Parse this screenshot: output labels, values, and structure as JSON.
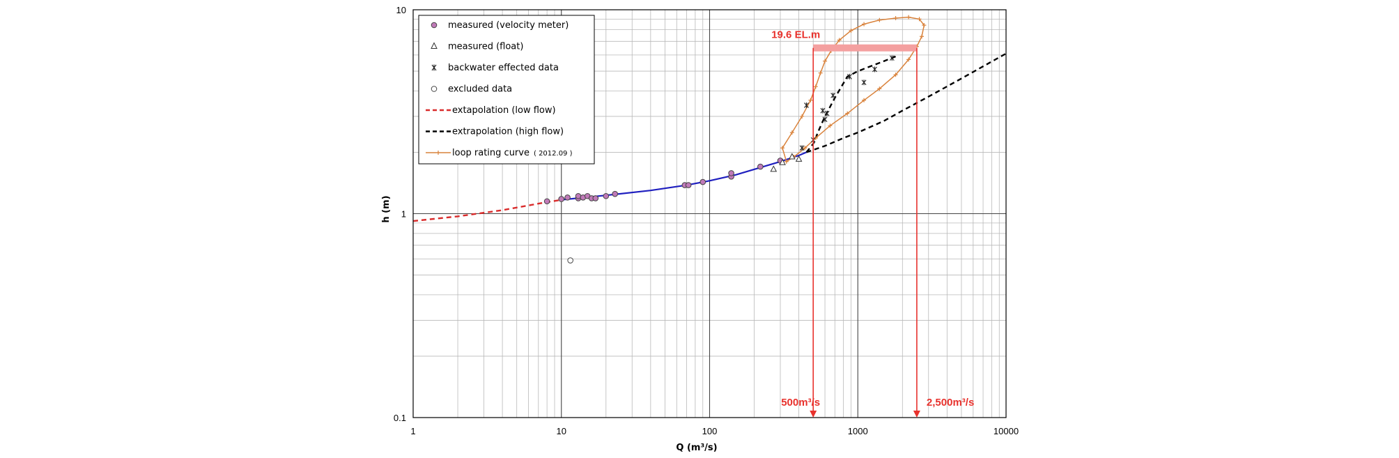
{
  "chart_data": {
    "type": "scatter",
    "title": "",
    "xlabel": "Q (m³/s)",
    "ylabel": "h (m)",
    "x_scale": "log",
    "y_scale": "log",
    "xlim": [
      1,
      10000
    ],
    "ylim": [
      0.1,
      10
    ],
    "x_ticks": [
      "1",
      "10",
      "100",
      "1000",
      "10000"
    ],
    "y_ticks": [
      "0.1",
      "1",
      "10"
    ],
    "grid": true,
    "legend_position": "top-left",
    "colors": {
      "velocity_fill": "#c07ab8",
      "rating_curve": "#1f1fbf",
      "low_flow": "#d92b2b",
      "high_flow": "#000000",
      "loop": "#d9823b",
      "annotation": "#e8322d",
      "annotation_band": "#f4a0a0"
    },
    "legend": [
      {
        "key": "velocity",
        "label": "measured (velocity meter)"
      },
      {
        "key": "float",
        "label": "measured (float)"
      },
      {
        "key": "backwater",
        "label": "backwater effected data"
      },
      {
        "key": "excluded",
        "label": "excluded data"
      },
      {
        "key": "low_flow",
        "label": "extapolation (low flow)"
      },
      {
        "key": "high_flow",
        "label": "extrapolation (high flow)"
      },
      {
        "key": "loop",
        "label": "loop rating curve",
        "suffix": "( 2012.09 )"
      }
    ],
    "series": {
      "velocity": [
        [
          8,
          1.15
        ],
        [
          10,
          1.18
        ],
        [
          11,
          1.2
        ],
        [
          13,
          1.19
        ],
        [
          13,
          1.22
        ],
        [
          14,
          1.2
        ],
        [
          15,
          1.22
        ],
        [
          16,
          1.19
        ],
        [
          17,
          1.19
        ],
        [
          20,
          1.22
        ],
        [
          23,
          1.25
        ],
        [
          68,
          1.38
        ],
        [
          72,
          1.38
        ],
        [
          90,
          1.43
        ],
        [
          140,
          1.52
        ],
        [
          140,
          1.58
        ],
        [
          220,
          1.7
        ],
        [
          300,
          1.82
        ]
      ],
      "float": [
        [
          270,
          1.65
        ],
        [
          310,
          1.78
        ],
        [
          360,
          1.9
        ],
        [
          400,
          1.85
        ]
      ],
      "backwater": [
        [
          420,
          2.1
        ],
        [
          450,
          3.4
        ],
        [
          500,
          2.3
        ],
        [
          580,
          3.2
        ],
        [
          600,
          2.9
        ],
        [
          620,
          3.1
        ],
        [
          680,
          3.8
        ],
        [
          880,
          4.7
        ],
        [
          1100,
          4.4
        ],
        [
          1300,
          5.1
        ],
        [
          1700,
          5.8
        ]
      ],
      "excluded": [
        [
          11.5,
          0.59
        ]
      ],
      "rating_curve": [
        [
          10,
          1.17
        ],
        [
          20,
          1.23
        ],
        [
          40,
          1.3
        ],
        [
          70,
          1.38
        ],
        [
          100,
          1.45
        ],
        [
          150,
          1.55
        ],
        [
          200,
          1.65
        ],
        [
          300,
          1.8
        ],
        [
          400,
          1.93
        ],
        [
          450,
          2.0
        ]
      ],
      "low_flow": [
        [
          1,
          0.92
        ],
        [
          2,
          0.97
        ],
        [
          4,
          1.04
        ],
        [
          7,
          1.12
        ],
        [
          10,
          1.17
        ]
      ],
      "high_flow_branch_1": [
        [
          450,
          2.0
        ],
        [
          500,
          2.2
        ],
        [
          550,
          2.6
        ],
        [
          600,
          3.0
        ],
        [
          700,
          3.7
        ],
        [
          850,
          4.7
        ],
        [
          1000,
          5.0
        ],
        [
          1500,
          5.6
        ],
        [
          1800,
          5.9
        ]
      ],
      "high_flow_branch_2": [
        [
          450,
          2.0
        ],
        [
          600,
          2.15
        ],
        [
          800,
          2.35
        ],
        [
          1000,
          2.5
        ],
        [
          1500,
          2.85
        ],
        [
          2000,
          3.2
        ],
        [
          3000,
          3.75
        ],
        [
          5000,
          4.6
        ],
        [
          10000,
          6.1
        ]
      ],
      "loop": [
        [
          310,
          2.1
        ],
        [
          360,
          2.5
        ],
        [
          420,
          3.0
        ],
        [
          480,
          3.6
        ],
        [
          520,
          4.2
        ],
        [
          560,
          4.9
        ],
        [
          600,
          5.6
        ],
        [
          660,
          6.3
        ],
        [
          750,
          7.1
        ],
        [
          900,
          7.9
        ],
        [
          1100,
          8.5
        ],
        [
          1400,
          8.9
        ],
        [
          1800,
          9.1
        ],
        [
          2200,
          9.2
        ],
        [
          2600,
          9.0
        ],
        [
          2800,
          8.4
        ],
        [
          2700,
          7.4
        ],
        [
          2500,
          6.6
        ],
        [
          2200,
          5.7
        ],
        [
          1800,
          4.8
        ],
        [
          1400,
          4.1
        ],
        [
          1100,
          3.6
        ],
        [
          850,
          3.1
        ],
        [
          650,
          2.7
        ],
        [
          520,
          2.35
        ],
        [
          440,
          2.1
        ],
        [
          370,
          1.9
        ],
        [
          330,
          1.8
        ]
      ]
    },
    "annotations": {
      "level_label": "19.6 EL.m",
      "level_h": 6.5,
      "level_range": [
        500,
        2500
      ],
      "q_low_label": "500m³/s",
      "q_high_label": "2,500m³/s",
      "q_low": 500,
      "q_high": 2500
    }
  }
}
